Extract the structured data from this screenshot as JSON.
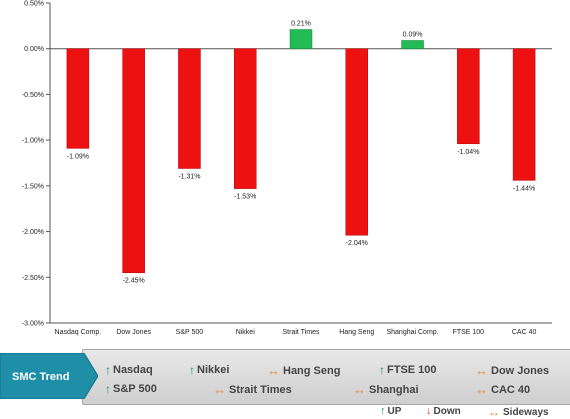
{
  "chart_data": {
    "type": "bar",
    "categories": [
      "Nasdaq Comp.",
      "Dow Jones",
      "S&P 500",
      "Nikkei",
      "Strait Times",
      "Hang Seng",
      "Shanghai Comp.",
      "FTSE 100",
      "CAC 40"
    ],
    "values": [
      -1.09,
      -2.45,
      -1.31,
      -1.53,
      0.21,
      -2.04,
      0.09,
      -1.04,
      -1.44
    ],
    "value_labels": [
      "-1.09%",
      "-2.45%",
      "-1.31%",
      "-1.53%",
      "0.21%",
      "-2.04%",
      "0.09%",
      "-1.04%",
      "-1.44%"
    ],
    "y_ticks": [
      0.5,
      0,
      -0.5,
      -1.0,
      -1.5,
      -2.0,
      -2.5,
      -3.0
    ],
    "y_tick_labels": [
      "0.50%",
      "0.00%",
      "-0.50%",
      "-1.00%",
      "-1.50%",
      "-2.00%",
      "-2.50%",
      "-3.00%"
    ],
    "ylim": [
      -3.0,
      0.5
    ],
    "grid": false,
    "colors": {
      "negative": "#ee1111",
      "positive": "#22bb55"
    }
  },
  "trend": {
    "title": "SMC Trend",
    "items": [
      {
        "label": "Nasdaq",
        "direction": "up"
      },
      {
        "label": "Nikkei",
        "direction": "up"
      },
      {
        "label": "Hang Seng",
        "direction": "sideways"
      },
      {
        "label": "FTSE 100",
        "direction": "up"
      },
      {
        "label": "Dow Jones",
        "direction": "sideways"
      },
      {
        "label": "S&P 500",
        "direction": "up"
      },
      {
        "label": "Strait Times",
        "direction": "sideways"
      },
      {
        "label": "Shanghai",
        "direction": "sideways"
      },
      {
        "label": "CAC 40",
        "direction": "sideways"
      }
    ]
  },
  "legend": {
    "up": "UP",
    "down": "Down",
    "sideways": "Sideways"
  },
  "colors": {
    "badge": "#1f8fa8",
    "up": "#1a9a6a",
    "down": "#d93a2a",
    "sideways": "#e88a3a"
  }
}
